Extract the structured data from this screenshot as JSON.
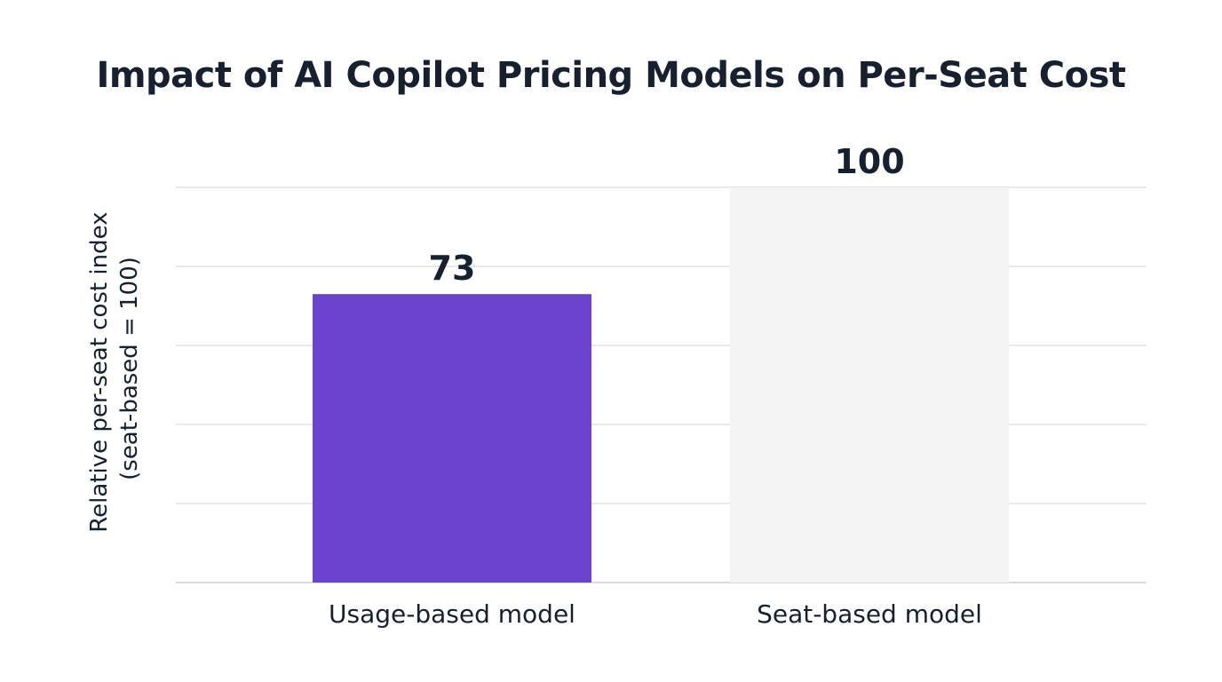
{
  "chart_data": {
    "type": "bar",
    "title": "Impact of AI Copilot Pricing Models on Per-Seat Cost",
    "xlabel": "",
    "ylabel_lines": [
      "Relative per-seat cost index",
      "(seat-based = 100)"
    ],
    "categories": [
      "Usage-based model",
      "Seat-based model"
    ],
    "values": [
      73,
      100
    ],
    "value_labels": [
      "73",
      "100"
    ],
    "bar_colors": [
      "#6b43cf",
      "#f4f4f4"
    ],
    "ylim": [
      0,
      100
    ],
    "gridline_values": [
      0,
      20,
      40,
      60,
      80,
      100
    ],
    "y_tick_labels_shown": false,
    "grid": true,
    "legend": "none"
  },
  "colors": {
    "text": "#16202e",
    "grid": "#dcdcdc",
    "background": "#ffffff"
  }
}
